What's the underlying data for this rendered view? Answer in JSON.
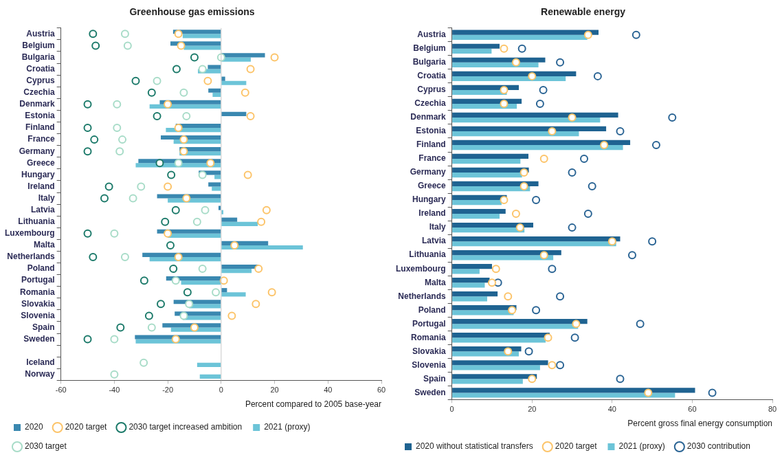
{
  "chart_data": [
    {
      "type": "bar",
      "orientation": "horizontal",
      "title": "Greenhouse gas emissions",
      "xlabel": "Percent compared to 2005 base-year",
      "legend": "bottom",
      "xlim": [
        -60,
        60
      ],
      "xticks": [
        -60,
        -40,
        -20,
        0,
        20,
        40,
        60
      ],
      "categories": [
        "Austria",
        "Belgium",
        "Bulgaria",
        "Croatia",
        "Cyprus",
        "Czechia",
        "Denmark",
        "Estonia",
        "Finland",
        "France",
        "Germany",
        "Greece",
        "Hungary",
        "Ireland",
        "Italy",
        "Latvia",
        "Lithuania",
        "Luxembourg",
        "Malta",
        "Netherlands",
        "Poland",
        "Portugal",
        "Romania",
        "Slovakia",
        "Slovenia",
        "Spain",
        "Sweden",
        null,
        "Iceland",
        "Norway"
      ],
      "ref_lines": [
        {
          "axis": "x",
          "value": 0,
          "color": "#c8c8c8"
        }
      ],
      "series": [
        {
          "name": "2020",
          "color": "#3a88b0",
          "values": [
            -18,
            -19,
            16.4,
            -5,
            1.5,
            -4.8,
            -23,
            9.4,
            -17,
            -22.6,
            -15.6,
            -31,
            -8.4,
            -4.8,
            -24,
            -1,
            6,
            -24,
            17.6,
            -29.5,
            13.9,
            -20.6,
            2.2,
            -17.8,
            -17.4,
            -22,
            -32.3,
            null,
            null,
            null
          ]
        },
        {
          "name": "2020 target",
          "type": "scatter",
          "marker": "circle",
          "color": "#fcc46a",
          "values": [
            -16,
            -15,
            20,
            11,
            -5,
            9,
            -20,
            11,
            -16,
            -14,
            -14,
            -4,
            10,
            -20,
            -13,
            17,
            15,
            -20,
            5,
            -16,
            14,
            1,
            19,
            13,
            4,
            -10,
            -17,
            null,
            null,
            null
          ]
        },
        {
          "name": "2030 target increased ambition",
          "type": "scatter",
          "marker": "circle",
          "color": "#1c7a6a",
          "values": [
            -48,
            -47,
            -10,
            -16.7,
            -32,
            -26,
            -50,
            -24,
            -50,
            -47.5,
            -50,
            -23,
            -18.7,
            -42,
            -43.7,
            -17,
            -21,
            -50,
            -19,
            -48,
            -17.9,
            -28.8,
            -12.6,
            -22.6,
            -27,
            -37.7,
            -50,
            null,
            null,
            null
          ]
        },
        {
          "name": "2021 (proxy)",
          "color": "#6cc4d8",
          "values": [
            -14.4,
            -14,
            11.1,
            -8.7,
            9.4,
            -3.2,
            -26.8,
            0,
            -20.7,
            -17.8,
            -15.6,
            -32,
            -2.5,
            -3.5,
            -20,
            0.8,
            13.7,
            -20,
            30.6,
            -26.8,
            11.4,
            -15,
            9.2,
            -12,
            -14.4,
            -18.8,
            -32,
            null,
            -9,
            -8
          ]
        },
        {
          "name": "2030 target",
          "type": "scatter",
          "marker": "circle",
          "color": "#a8dcc8",
          "values": [
            -36,
            -35,
            0,
            -7,
            -24,
            -14,
            -39,
            -13,
            -39,
            -37,
            -38,
            -16,
            -7,
            -30,
            -33,
            -6,
            -9,
            -40,
            null,
            -36,
            -7,
            -17,
            -2,
            -12,
            -14,
            -26,
            -40,
            null,
            -29,
            -40
          ]
        }
      ]
    },
    {
      "type": "bar",
      "orientation": "horizontal",
      "title": "Renewable energy",
      "xlabel": "Percent gross final energy consumption",
      "legend": "bottom",
      "xlim": [
        0,
        80
      ],
      "xticks": [
        0,
        20,
        40,
        60,
        80
      ],
      "categories": [
        "Austria",
        "Belgium",
        "Bulgaria",
        "Croatia",
        "Cyprus",
        "Czechia",
        "Denmark",
        "Estonia",
        "Finland",
        "France",
        "Germany",
        "Greece",
        "Hungary",
        "Ireland",
        "Italy",
        "Latvia",
        "Lithuania",
        "Luxembourg",
        "Malta",
        "Netherlands",
        "Poland",
        "Portugal",
        "Romania",
        "Slovakia",
        "Slovenia",
        "Spain",
        "Sweden"
      ],
      "series": [
        {
          "name": "2020 without statistical transfers",
          "color": "#1f6391",
          "values": [
            36.6,
            11.9,
            23.3,
            31,
            16.7,
            17.4,
            41.5,
            38.5,
            44.5,
            19.1,
            19.2,
            21.6,
            13.7,
            13.4,
            20.3,
            42,
            27.3,
            10,
            9.4,
            11.4,
            16.1,
            33.8,
            24.4,
            17.3,
            24,
            21.2,
            60.7
          ]
        },
        {
          "name": "2020 target",
          "type": "scatter",
          "marker": "circle",
          "color": "#fcc46a",
          "values": [
            34,
            13,
            16,
            20,
            13,
            13,
            30,
            25,
            38,
            23,
            18,
            18,
            13,
            16,
            17,
            40,
            23,
            11,
            10,
            14,
            15,
            31,
            24,
            14,
            25,
            20,
            49
          ]
        },
        {
          "name": "2021 (proxy)",
          "color": "#6cc4d8",
          "values": [
            33.8,
            9.9,
            21.6,
            28.4,
            13.7,
            16.2,
            37,
            31.7,
            42.7,
            17.1,
            17.5,
            19.5,
            12.4,
            11.9,
            18.1,
            41,
            25.3,
            6.9,
            8.2,
            8.8,
            15.4,
            31.5,
            23.4,
            16.7,
            22,
            17.7,
            55.7
          ]
        },
        {
          "name": "2030 contribution",
          "type": "scatter",
          "marker": "circle",
          "color": "#2a6494",
          "values": [
            46,
            17.5,
            27,
            36.4,
            22.8,
            22,
            55,
            42,
            51,
            33,
            30,
            35,
            21,
            34,
            30,
            50,
            45,
            25,
            11.5,
            27,
            21,
            47,
            30.7,
            19.2,
            27,
            42,
            65
          ]
        }
      ]
    }
  ]
}
